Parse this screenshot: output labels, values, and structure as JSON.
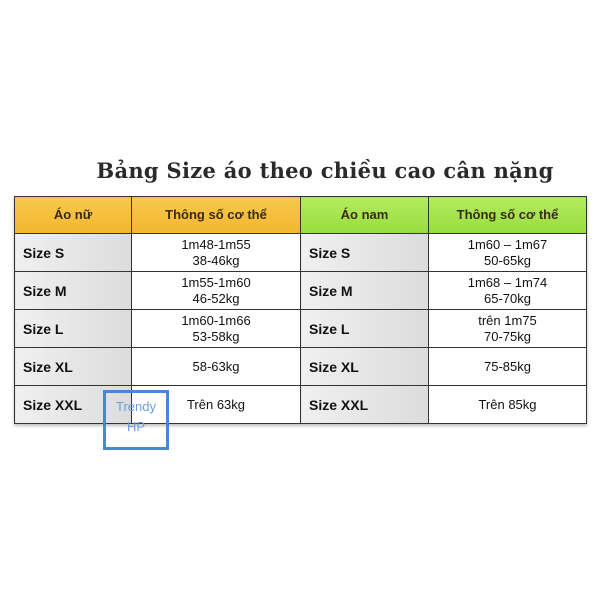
{
  "title": "Bảng Size áo theo chiều cao cân nặng",
  "headers": [
    "Áo nữ",
    "Thông số cơ thể",
    "Áo nam",
    "Thông số cơ thể"
  ],
  "colors": {
    "female_header": "#f5c040",
    "male_header": "#a6e44e",
    "watermark": "#4a86d8"
  },
  "rows": [
    {
      "f_size": "Size S",
      "f_spec": [
        "1m48-1m55",
        "38-46kg"
      ],
      "m_size": "Size S",
      "m_spec": [
        "1m60 – 1m67",
        "50-65kg"
      ]
    },
    {
      "f_size": "Size M",
      "f_spec": [
        "1m55-1m60",
        "46-52kg"
      ],
      "m_size": "Size M",
      "m_spec": [
        "1m68 – 1m74",
        "65-70kg"
      ]
    },
    {
      "f_size": "Size L",
      "f_spec": [
        "1m60-1m66",
        "53-58kg"
      ],
      "m_size": "Size L",
      "m_spec": [
        "trên 1m75",
        "70-75kg"
      ]
    },
    {
      "f_size": "Size XL",
      "f_spec": [
        "58-63kg"
      ],
      "m_size": "Size XL",
      "m_spec": [
        "75-85kg"
      ]
    },
    {
      "f_size": "Size XXL",
      "f_spec": [
        "Trên 63kg"
      ],
      "m_size": "Size XXL",
      "m_spec": [
        "Trên 85kg"
      ]
    }
  ],
  "watermark": [
    "Trendy",
    "HP"
  ]
}
